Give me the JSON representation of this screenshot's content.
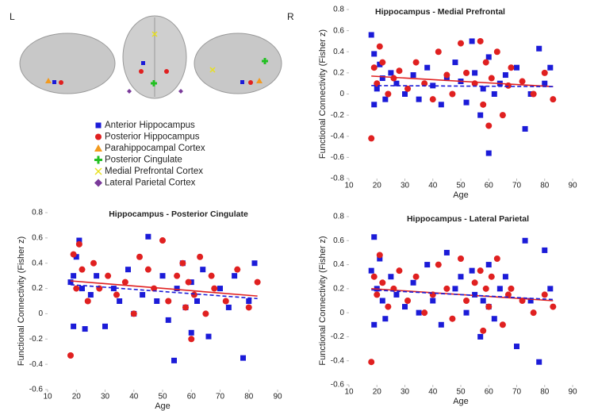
{
  "brain_panel": {
    "left_label": "L",
    "right_label": "R",
    "legend": [
      {
        "label": "Anterior  Hippocampus",
        "color": "#1b1bd8",
        "marker": "square"
      },
      {
        "label": "Posterior Hippocampus",
        "color": "#e02020",
        "marker": "circle"
      },
      {
        "label": "Parahippocampal Cortex",
        "color": "#f39a1e",
        "marker": "triangle"
      },
      {
        "label": "Posterior Cingulate",
        "color": "#22c022",
        "marker": "plus"
      },
      {
        "label": "Medial  Prefrontal Cortex",
        "color": "#e8e020",
        "marker": "cross"
      },
      {
        "label": "Lateral Parietal Cortex",
        "color": "#7a3a9a",
        "marker": "diamond"
      }
    ]
  },
  "chart_data": [
    {
      "type": "scatter",
      "title": "Hippocampus - Medial Prefrontal",
      "xlabel": "Age",
      "ylabel": "Functional Connectivity (Fisher z)",
      "xlim": [
        10,
        90
      ],
      "xticks": [
        10,
        20,
        30,
        40,
        50,
        60,
        70,
        80,
        90
      ],
      "ylim": [
        -0.8,
        0.8
      ],
      "yticks": [
        -0.8,
        -0.6,
        -0.4,
        -0.2,
        0,
        0.2,
        0.4,
        0.6,
        0.8
      ],
      "series": [
        {
          "color": "#1b1bd8",
          "marker": "square",
          "x": [
            18,
            19,
            19,
            20,
            21,
            22,
            23,
            25,
            27,
            30,
            33,
            35,
            38,
            40,
            43,
            45,
            48,
            50,
            52,
            54,
            55,
            57,
            58,
            60,
            60,
            62,
            64,
            66,
            70,
            73,
            75,
            78,
            80,
            82
          ],
          "values": [
            0.56,
            0.38,
            -0.1,
            0.05,
            0.28,
            0.15,
            -0.05,
            0.2,
            0.1,
            0.0,
            0.18,
            -0.05,
            0.25,
            0.08,
            -0.1,
            0.15,
            0.3,
            0.12,
            -0.08,
            0.5,
            0.2,
            -0.2,
            0.05,
            -0.56,
            0.35,
            0.0,
            0.1,
            0.18,
            0.25,
            -0.33,
            0.0,
            0.43,
            0.1,
            0.25
          ]
        },
        {
          "color": "#e02020",
          "marker": "circle",
          "x": [
            18,
            19,
            20,
            21,
            22,
            24,
            26,
            28,
            31,
            34,
            37,
            40,
            42,
            45,
            47,
            50,
            52,
            55,
            57,
            58,
            59,
            60,
            61,
            63,
            65,
            67,
            68,
            72,
            76,
            80,
            83
          ],
          "values": [
            -0.42,
            0.25,
            0.1,
            0.45,
            0.3,
            0.0,
            0.15,
            0.22,
            0.05,
            0.3,
            0.1,
            -0.05,
            0.4,
            0.18,
            0.0,
            0.48,
            0.2,
            0.1,
            0.5,
            -0.1,
            0.3,
            -0.3,
            0.15,
            0.4,
            -0.2,
            0.08,
            0.25,
            0.12,
            0.0,
            0.2,
            -0.05
          ]
        }
      ],
      "trends": [
        {
          "color": "#e02020",
          "dashed": false,
          "x": [
            18,
            83
          ],
          "values": [
            0.17,
            0.07
          ]
        },
        {
          "color": "#1b1bd8",
          "dashed": true,
          "x": [
            18,
            83
          ],
          "values": [
            0.08,
            0.07
          ]
        }
      ]
    },
    {
      "type": "scatter",
      "title": "Hippocampus - Posterior Cingulate",
      "xlabel": "Age",
      "ylabel": "Functional Connectivity (Fisher z)",
      "xlim": [
        10,
        90
      ],
      "xticks": [
        10,
        20,
        30,
        40,
        50,
        60,
        70,
        80,
        90
      ],
      "ylim": [
        -0.6,
        0.8
      ],
      "yticks": [
        -0.6,
        -0.4,
        -0.2,
        0,
        0.2,
        0.4,
        0.6,
        0.8
      ],
      "series": [
        {
          "color": "#1b1bd8",
          "marker": "square",
          "x": [
            18,
            19,
            19,
            20,
            21,
            22,
            23,
            25,
            27,
            30,
            33,
            35,
            38,
            40,
            43,
            45,
            48,
            50,
            52,
            54,
            55,
            57,
            58,
            60,
            60,
            62,
            64,
            66,
            70,
            73,
            75,
            78,
            80,
            82
          ],
          "values": [
            0.25,
            0.3,
            -0.1,
            0.45,
            0.58,
            0.2,
            -0.12,
            0.15,
            0.3,
            -0.1,
            0.2,
            0.1,
            0.35,
            0.0,
            0.15,
            0.61,
            0.1,
            0.3,
            -0.05,
            -0.37,
            0.2,
            0.4,
            0.05,
            -0.15,
            0.25,
            0.1,
            0.35,
            -0.18,
            0.2,
            0.05,
            0.3,
            -0.35,
            0.1,
            0.4
          ]
        },
        {
          "color": "#e02020",
          "marker": "circle",
          "x": [
            18,
            19,
            20,
            21,
            22,
            24,
            26,
            28,
            31,
            34,
            37,
            40,
            42,
            45,
            47,
            50,
            52,
            55,
            57,
            58,
            59,
            60,
            61,
            63,
            65,
            67,
            68,
            72,
            76,
            80,
            83
          ],
          "values": [
            -0.33,
            0.47,
            0.2,
            0.55,
            0.35,
            0.1,
            0.4,
            0.2,
            0.3,
            0.15,
            0.25,
            0.0,
            0.45,
            0.35,
            0.2,
            0.58,
            0.1,
            0.3,
            0.4,
            0.05,
            0.25,
            -0.2,
            0.15,
            0.45,
            0.0,
            0.3,
            0.2,
            0.1,
            0.35,
            0.05,
            0.25
          ]
        }
      ],
      "trends": [
        {
          "color": "#e02020",
          "dashed": false,
          "x": [
            18,
            83
          ],
          "values": [
            0.26,
            0.14
          ]
        },
        {
          "color": "#1b1bd8",
          "dashed": true,
          "x": [
            18,
            83
          ],
          "values": [
            0.23,
            0.12
          ]
        }
      ]
    },
    {
      "type": "scatter",
      "title": "Hippocampus - Lateral Parietal",
      "xlabel": "Age",
      "ylabel": "Functional Connectivity (Fisher z)",
      "xlim": [
        10,
        90
      ],
      "xticks": [
        10,
        20,
        30,
        40,
        50,
        60,
        70,
        80,
        90
      ],
      "ylim": [
        -0.6,
        0.8
      ],
      "yticks": [
        -0.6,
        -0.4,
        -0.2,
        0,
        0.2,
        0.4,
        0.6,
        0.8
      ],
      "series": [
        {
          "color": "#1b1bd8",
          "marker": "square",
          "x": [
            18,
            19,
            19,
            20,
            21,
            22,
            23,
            25,
            27,
            30,
            33,
            35,
            38,
            40,
            43,
            45,
            48,
            50,
            52,
            54,
            55,
            57,
            58,
            60,
            60,
            62,
            64,
            66,
            70,
            73,
            75,
            78,
            80,
            82
          ],
          "values": [
            0.35,
            0.63,
            -0.1,
            0.2,
            0.45,
            0.1,
            -0.05,
            0.3,
            0.15,
            0.05,
            0.25,
            0.0,
            0.4,
            0.1,
            -0.1,
            0.5,
            0.2,
            0.3,
            0.0,
            0.35,
            0.15,
            -0.2,
            0.1,
            0.05,
            0.4,
            -0.05,
            0.2,
            0.3,
            -0.28,
            0.6,
            0.1,
            -0.41,
            0.52,
            0.2
          ]
        },
        {
          "color": "#e02020",
          "marker": "circle",
          "x": [
            18,
            19,
            20,
            21,
            22,
            24,
            26,
            28,
            31,
            34,
            37,
            40,
            42,
            45,
            47,
            50,
            52,
            55,
            57,
            58,
            59,
            60,
            61,
            63,
            65,
            67,
            68,
            72,
            76,
            80,
            83
          ],
          "values": [
            -0.41,
            0.3,
            0.15,
            0.48,
            0.25,
            0.05,
            0.2,
            0.35,
            0.1,
            0.3,
            0.0,
            0.15,
            0.4,
            0.2,
            -0.05,
            0.45,
            0.1,
            0.25,
            0.35,
            -0.15,
            0.2,
            0.05,
            0.3,
            0.45,
            -0.1,
            0.15,
            0.2,
            0.1,
            0.0,
            0.15,
            0.05
          ]
        }
      ],
      "trends": [
        {
          "color": "#e02020",
          "dashed": false,
          "x": [
            18,
            83
          ],
          "values": [
            0.2,
            0.1
          ]
        },
        {
          "color": "#1b1bd8",
          "dashed": true,
          "x": [
            18,
            83
          ],
          "values": [
            0.19,
            0.11
          ]
        }
      ]
    }
  ]
}
